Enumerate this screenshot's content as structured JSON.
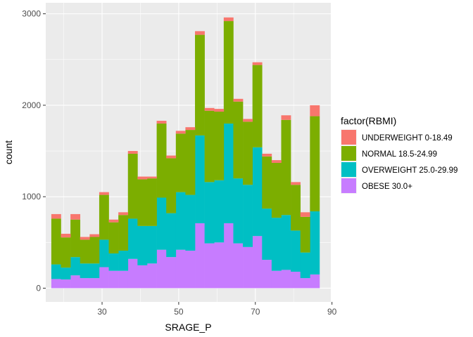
{
  "chart_data": {
    "type": "bar",
    "stacked": true,
    "title": "",
    "xlabel": "SRAGE_P",
    "ylabel": "count",
    "xlim": [
      15.3,
      89.7
    ],
    "ylim": [
      -150,
      3120
    ],
    "x_ticks": [
      30,
      50,
      70,
      90
    ],
    "y_ticks": [
      0,
      1000,
      2000,
      3000
    ],
    "bin_width": 2.5,
    "bin_centers": [
      18.0,
      20.5,
      23.0,
      25.5,
      28.0,
      30.5,
      33.0,
      35.5,
      38.0,
      40.5,
      43.0,
      45.5,
      48.0,
      50.5,
      53.0,
      55.5,
      58.0,
      60.5,
      63.0,
      65.5,
      68.0,
      70.5,
      73.0,
      75.5,
      78.0,
      80.5,
      83.0,
      85.5
    ],
    "legend": {
      "title": "factor(RBMI)",
      "position": "right"
    },
    "series": [
      {
        "name": "OBESE 30.0+",
        "color": "#c77cff",
        "values": [
          100,
          95,
          140,
          110,
          110,
          230,
          190,
          190,
          320,
          250,
          270,
          420,
          340,
          420,
          410,
          710,
          490,
          500,
          710,
          490,
          450,
          570,
          310,
          190,
          200,
          180,
          110,
          150
        ]
      },
      {
        "name": "OVERWEIGHT 25.0-29.99",
        "color": "#00bfc4",
        "values": [
          160,
          130,
          200,
          160,
          160,
          300,
          190,
          220,
          440,
          430,
          410,
          570,
          480,
          630,
          610,
          960,
          670,
          680,
          1090,
          710,
          680,
          970,
          560,
          580,
          600,
          450,
          280,
          690
        ]
      },
      {
        "name": "NORMAL 18.5-24.99",
        "color": "#7cae00",
        "values": [
          500,
          330,
          410,
          260,
          290,
          490,
          340,
          390,
          710,
          510,
          520,
          810,
          600,
          640,
          710,
          1100,
          780,
          750,
          1120,
          840,
          690,
          900,
          570,
          600,
          1040,
          500,
          390,
          1040
        ]
      },
      {
        "name": "UNDERWEIGHT 0-18.49",
        "color": "#f8766d",
        "values": [
          50,
          40,
          60,
          30,
          30,
          30,
          30,
          30,
          30,
          30,
          20,
          30,
          30,
          30,
          30,
          40,
          30,
          30,
          40,
          30,
          30,
          30,
          30,
          30,
          50,
          30,
          50,
          120
        ]
      }
    ],
    "legend_order": [
      "UNDERWEIGHT 0-18.49",
      "NORMAL 18.5-24.99",
      "OVERWEIGHT 25.0-29.99",
      "OBESE 30.0+"
    ],
    "grid": true,
    "panel_background": "#ebebeb",
    "grid_color": "#ffffff"
  }
}
